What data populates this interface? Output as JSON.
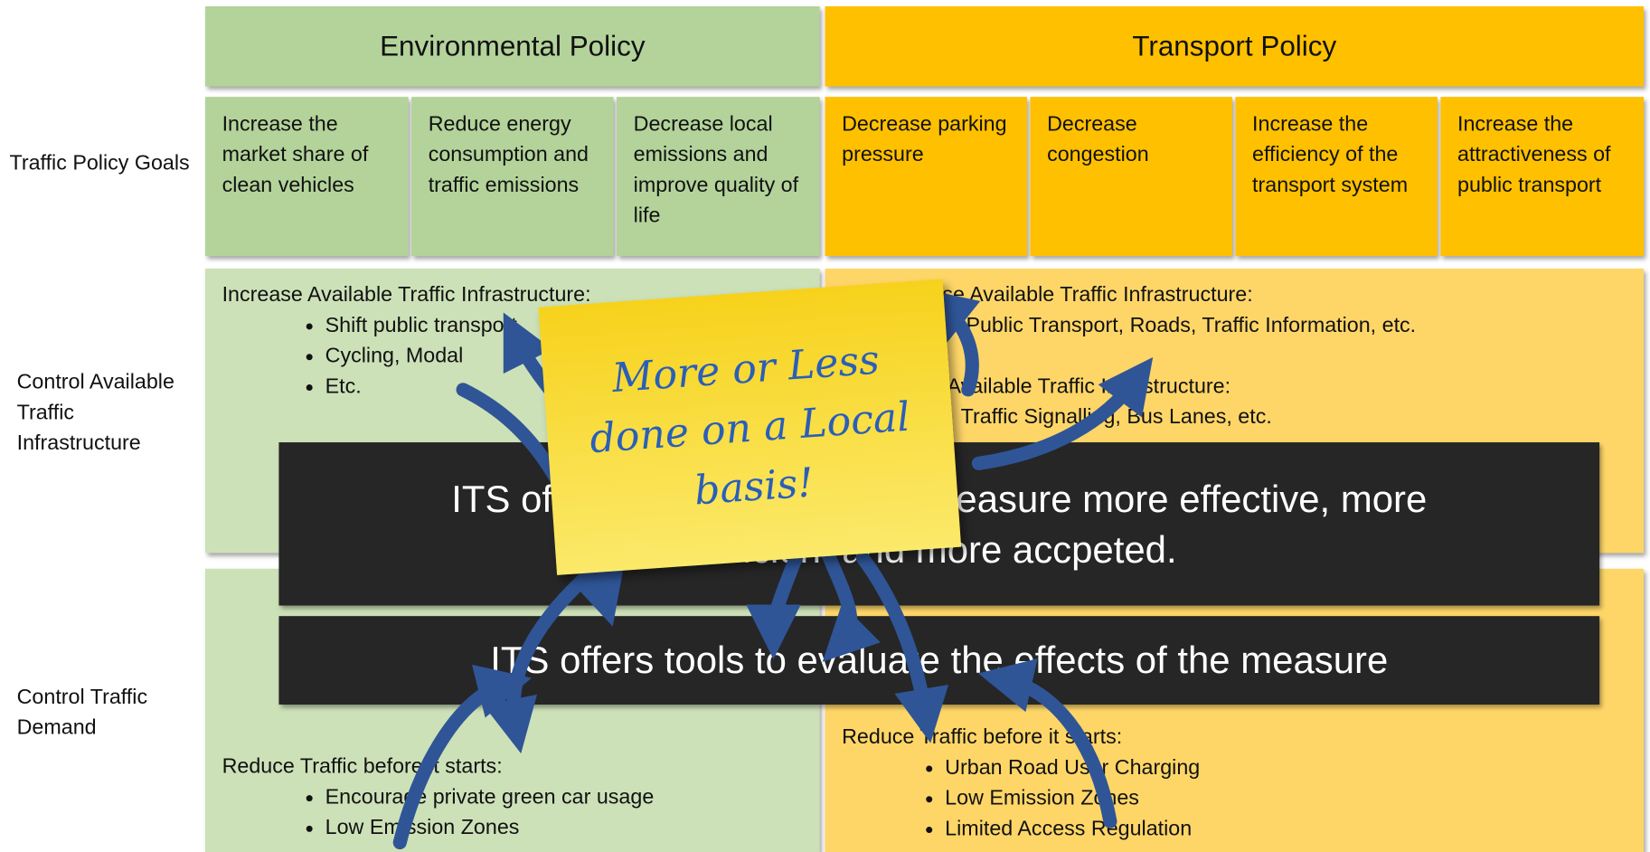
{
  "header": {
    "left": "Environmental Policy",
    "right": "Transport Policy"
  },
  "row_labels": [
    "Traffic Policy Goals",
    "Control Available Traffic Infrastructure",
    "Control Traffic Demand"
  ],
  "goals": {
    "environmental": [
      "Increase the market share of clean vehicles",
      "Reduce energy consumption and traffic emissions",
      "Decrease local emissions and improve quality of life"
    ],
    "transport": [
      "Decrease parking pressure",
      "Decrease congestion",
      "Increase the efficiency of the transport system",
      "Increase the attractiveness of public transport"
    ]
  },
  "infrastructure": {
    "left": {
      "heading": "Increase Available Traffic Infrastructure:",
      "items": [
        "Shift public transport",
        "Cycling, Modal",
        "Etc."
      ]
    },
    "right": {
      "heading": "Increase Available Traffic Infrastructure:",
      "items": [
        "Public Transport, Roads, Traffic Information, etc."
      ],
      "heading2": "Use Available Traffic Infrastructure:",
      "items2": [
        "Traffic Signalling, Bus Lanes, etc."
      ]
    }
  },
  "demand": {
    "left": {
      "heading": "Reduce Traffic before it starts:",
      "items": [
        "Encourage private green car usage",
        "Low Emission Zones"
      ]
    },
    "right": {
      "heading": "Reduce Traffic before it starts:",
      "items": [
        "Urban Road User Charging",
        "Low Emission Zones",
        "Limited Access Regulation"
      ]
    }
  },
  "banners": [
    "ITS offers tools to make the measure more effective, more efficient and more accpeted.",
    "ITS offers tools to evaluate the effects of the measure"
  ],
  "sticky_note": "More or Less done on a Local basis!"
}
